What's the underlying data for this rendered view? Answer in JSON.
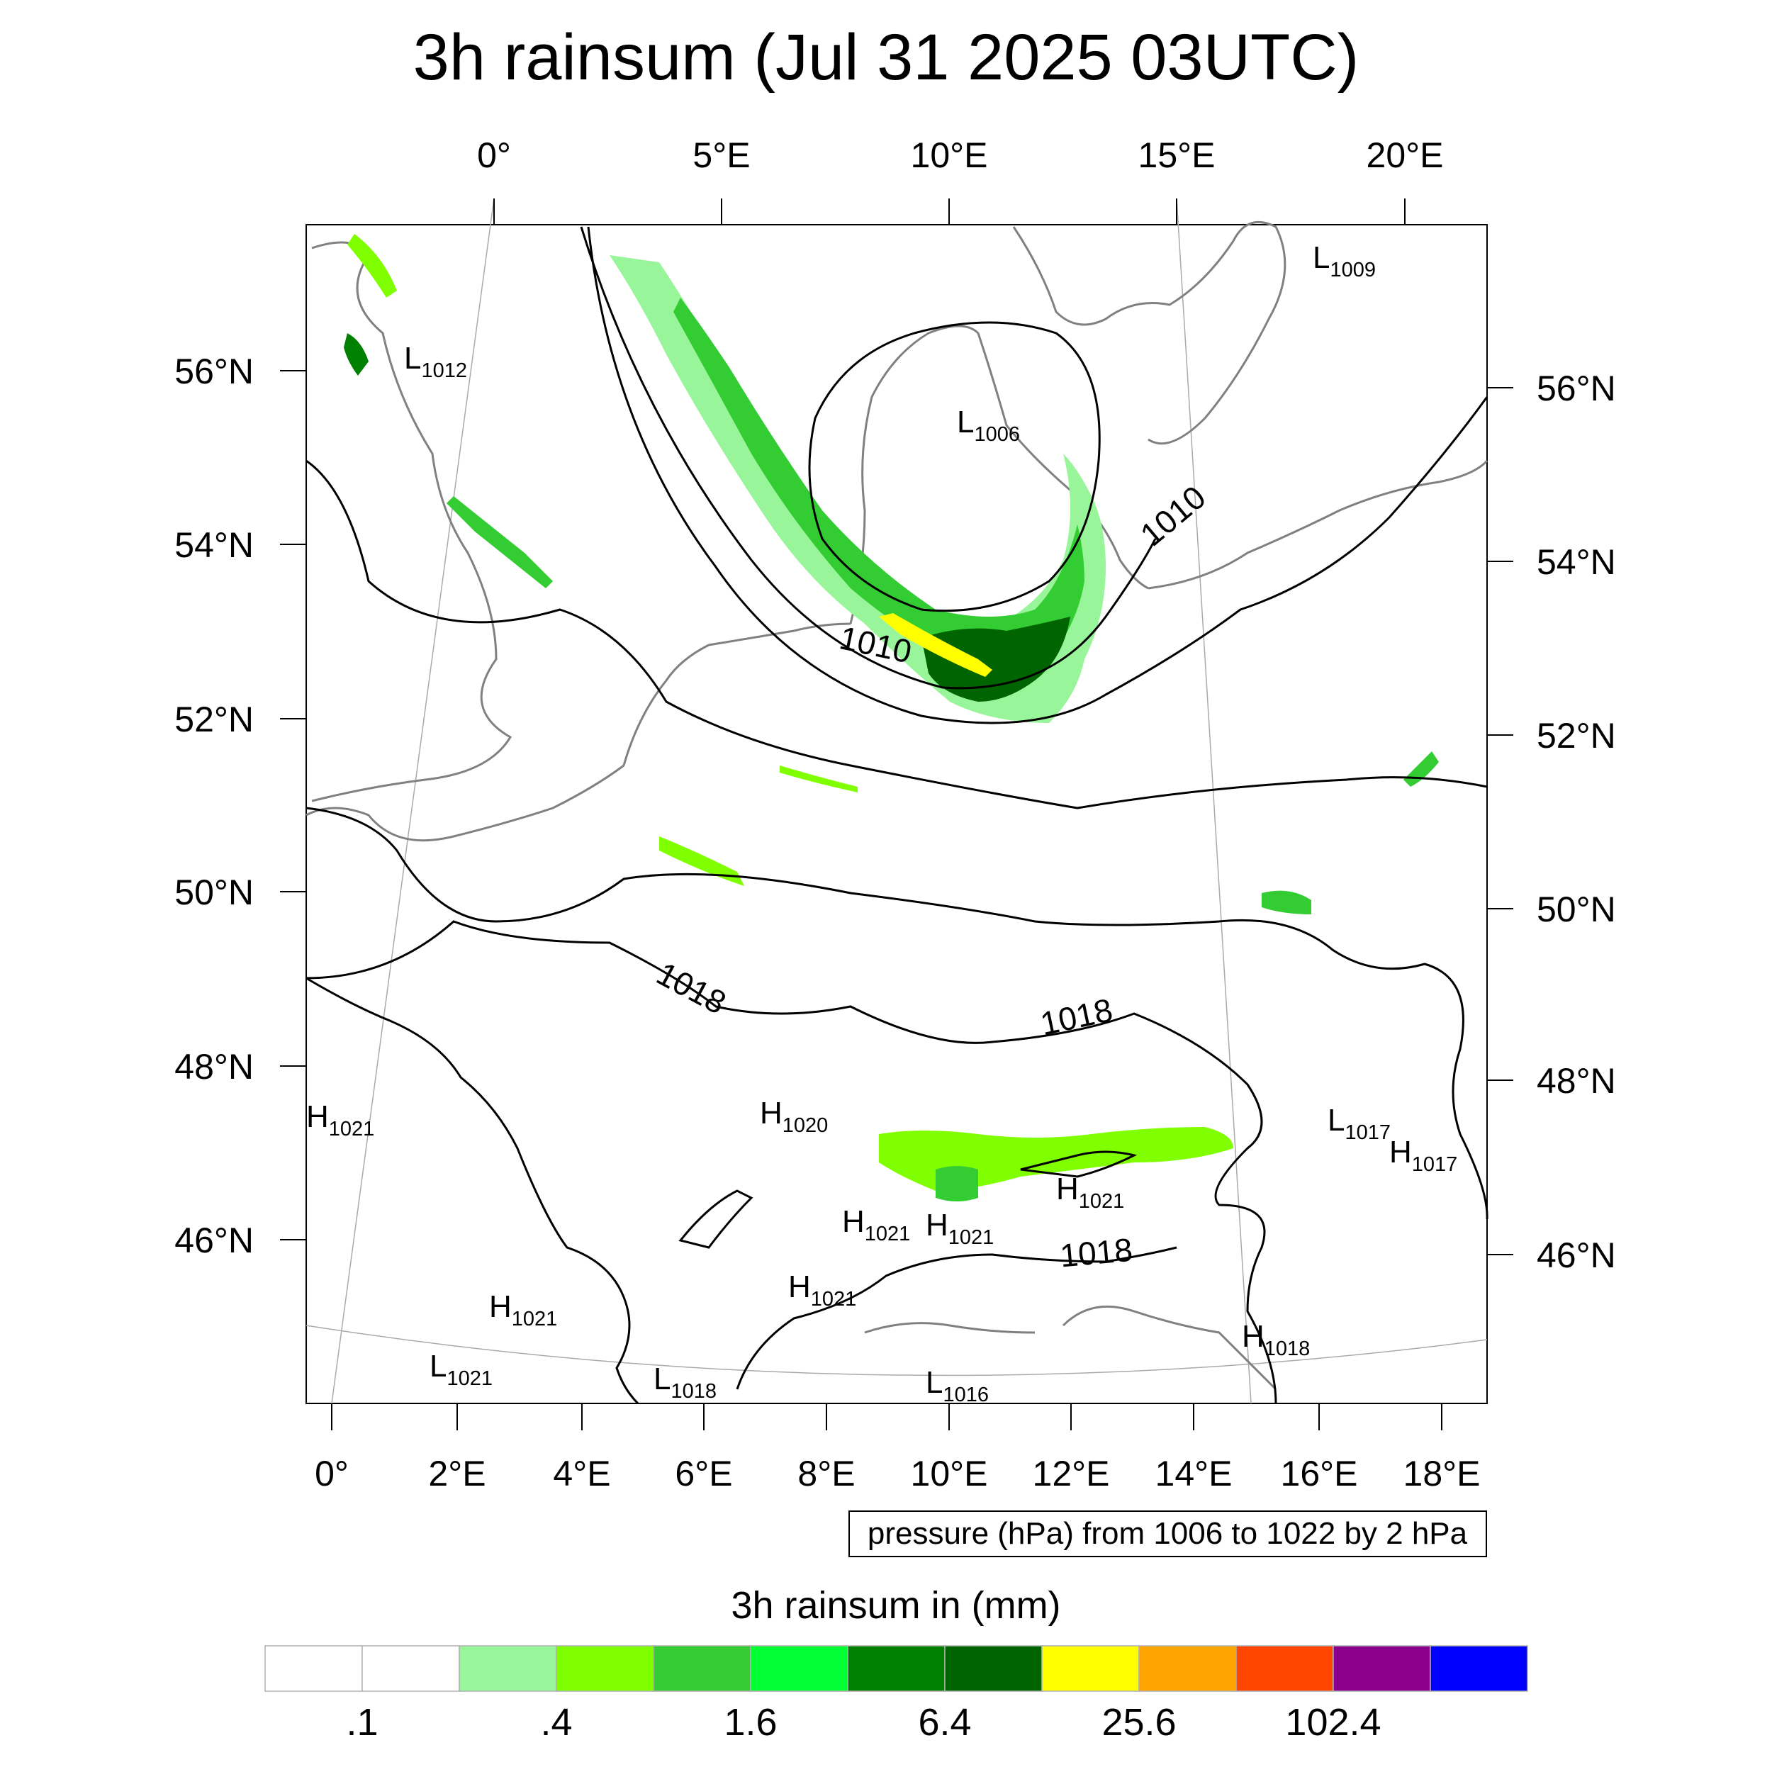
{
  "title": "3h rainsum (Jul 31 2025 03UTC)",
  "map": {
    "top_ticks": [
      "0°",
      "5°E",
      "10°E",
      "15°E",
      "20°E"
    ],
    "bottom_ticks": [
      "0°",
      "2°E",
      "4°E",
      "6°E",
      "8°E",
      "10°E",
      "12°E",
      "14°E",
      "16°E",
      "18°E"
    ],
    "left_ticks": [
      "56°N",
      "54°N",
      "52°N",
      "50°N",
      "48°N",
      "46°N"
    ],
    "right_ticks": [
      "56°N",
      "54°N",
      "52°N",
      "50°N",
      "48°N",
      "46°N"
    ],
    "contour_labels": [
      "1010",
      "1010",
      "1018",
      "1018",
      "1018"
    ],
    "pressure_systems": [
      {
        "type": "L",
        "value": "1009"
      },
      {
        "type": "L",
        "value": "1012"
      },
      {
        "type": "L",
        "value": "1006"
      },
      {
        "type": "H",
        "value": "1021"
      },
      {
        "type": "H",
        "value": "1020"
      },
      {
        "type": "L",
        "value": "1017"
      },
      {
        "type": "H",
        "value": "1017"
      },
      {
        "type": "H",
        "value": "1021"
      },
      {
        "type": "H",
        "value": "1021"
      },
      {
        "type": "H",
        "value": "1021"
      },
      {
        "type": "H",
        "value": "1021"
      },
      {
        "type": "H",
        "value": "1021"
      },
      {
        "type": "H",
        "value": "1018"
      },
      {
        "type": "L",
        "value": "1021"
      },
      {
        "type": "L",
        "value": "1018"
      },
      {
        "type": "L",
        "value": "1016"
      }
    ]
  },
  "pressure_note": "pressure (hPa) from 1006 to 1022 by 2 hPa",
  "colorbar": {
    "title": "3h rainsum in (mm)",
    "colors": [
      "#ffffff",
      "#ffffff",
      "#99f599",
      "#80ff00",
      "#33cc33",
      "#00ff33",
      "#008000",
      "#006400",
      "#ffff00",
      "#ffa500",
      "#ff4500",
      "#8b008b",
      "#0000ff"
    ],
    "labels": [
      ".1",
      ".4",
      "1.6",
      "6.4",
      "25.6",
      "102.4"
    ]
  }
}
